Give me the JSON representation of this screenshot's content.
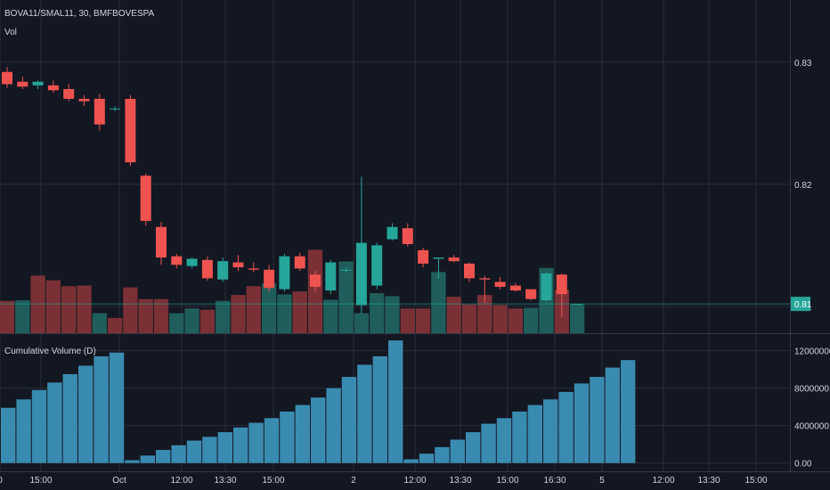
{
  "header": {
    "symbol_title": "BOVA11/SMAL11, 30, BMFBOVESPA",
    "volume_label": "Vol",
    "cumulative_label": "Cumulative Volume (D)"
  },
  "colors": {
    "background": "#131722",
    "up": "#26a69a",
    "down": "#ef5350",
    "vol_up": "#1f5e5a",
    "vol_down": "#7b3035",
    "cum_bar": "#3a8bb0",
    "grid": "#2a2e39"
  },
  "chart_data": [
    {
      "type": "candlestick",
      "title": "BOVA11/SMAL11, 30, BMFBOVESPA",
      "ylim": [
        0.8078,
        0.834
      ],
      "y_ticks": [
        "0.83",
        "0.82",
        "0.81"
      ],
      "y_tick_values": [
        0.83,
        0.82,
        0.81
      ],
      "last_price_label": "0.81",
      "last_price": 0.8102,
      "x_tick_labels": [
        "0",
        "15:00",
        "Oct",
        "12:00",
        "13:30",
        "15:00",
        "2",
        "12:00",
        "13:30",
        "15:00",
        "16:30",
        "5",
        "12:00",
        "13:30",
        "15:00"
      ],
      "candles": [
        {
          "o": 0.8292,
          "h": 0.8296,
          "l": 0.8279,
          "c": 0.8282
        },
        {
          "o": 0.8284,
          "h": 0.8288,
          "l": 0.8278,
          "c": 0.828
        },
        {
          "o": 0.8281,
          "h": 0.8285,
          "l": 0.8278,
          "c": 0.8284
        },
        {
          "o": 0.8281,
          "h": 0.8285,
          "l": 0.8275,
          "c": 0.8277
        },
        {
          "o": 0.8278,
          "h": 0.8282,
          "l": 0.8268,
          "c": 0.827
        },
        {
          "o": 0.827,
          "h": 0.8273,
          "l": 0.8264,
          "c": 0.8268
        },
        {
          "o": 0.827,
          "h": 0.8274,
          "l": 0.8244,
          "c": 0.8249
        },
        {
          "o": 0.8262,
          "h": 0.8264,
          "l": 0.826,
          "c": 0.8262
        },
        {
          "o": 0.827,
          "h": 0.8273,
          "l": 0.8215,
          "c": 0.8218
        },
        {
          "o": 0.8207,
          "h": 0.8209,
          "l": 0.8166,
          "c": 0.817
        },
        {
          "o": 0.8165,
          "h": 0.8169,
          "l": 0.8134,
          "c": 0.814
        },
        {
          "o": 0.8141,
          "h": 0.8143,
          "l": 0.8131,
          "c": 0.8134
        },
        {
          "o": 0.8133,
          "h": 0.814,
          "l": 0.8131,
          "c": 0.8139
        },
        {
          "o": 0.8138,
          "h": 0.8141,
          "l": 0.8121,
          "c": 0.8123
        },
        {
          "o": 0.8122,
          "h": 0.814,
          "l": 0.812,
          "c": 0.8137
        },
        {
          "o": 0.8136,
          "h": 0.8142,
          "l": 0.8129,
          "c": 0.8132
        },
        {
          "o": 0.8131,
          "h": 0.8136,
          "l": 0.8128,
          "c": 0.813
        },
        {
          "o": 0.813,
          "h": 0.8134,
          "l": 0.8112,
          "c": 0.8115
        },
        {
          "o": 0.8114,
          "h": 0.8143,
          "l": 0.8112,
          "c": 0.8141
        },
        {
          "o": 0.8141,
          "h": 0.8144,
          "l": 0.8129,
          "c": 0.8131
        },
        {
          "o": 0.8126,
          "h": 0.8129,
          "l": 0.8112,
          "c": 0.8116
        },
        {
          "o": 0.8113,
          "h": 0.8138,
          "l": 0.811,
          "c": 0.8136
        },
        {
          "o": 0.813,
          "h": 0.8132,
          "l": 0.8128,
          "c": 0.813
        },
        {
          "o": 0.8101,
          "h": 0.8206,
          "l": 0.8094,
          "c": 0.8152
        },
        {
          "o": 0.8117,
          "h": 0.8152,
          "l": 0.8114,
          "c": 0.815
        },
        {
          "o": 0.8155,
          "h": 0.8168,
          "l": 0.8154,
          "c": 0.8165
        },
        {
          "o": 0.8164,
          "h": 0.8168,
          "l": 0.8149,
          "c": 0.8151
        },
        {
          "o": 0.8146,
          "h": 0.8148,
          "l": 0.8132,
          "c": 0.8135
        },
        {
          "o": 0.8139,
          "h": 0.814,
          "l": 0.8123,
          "c": 0.814
        },
        {
          "o": 0.814,
          "h": 0.8142,
          "l": 0.8136,
          "c": 0.8137
        },
        {
          "o": 0.8135,
          "h": 0.8136,
          "l": 0.812,
          "c": 0.8123
        },
        {
          "o": 0.8123,
          "h": 0.8125,
          "l": 0.8103,
          "c": 0.8122
        },
        {
          "o": 0.812,
          "h": 0.8124,
          "l": 0.8114,
          "c": 0.8116
        },
        {
          "o": 0.8117,
          "h": 0.8119,
          "l": 0.8112,
          "c": 0.8113
        },
        {
          "o": 0.8114,
          "h": 0.8114,
          "l": 0.8105,
          "c": 0.8106
        },
        {
          "o": 0.8105,
          "h": 0.8128,
          "l": 0.8104,
          "c": 0.8127
        },
        {
          "o": 0.8126,
          "h": 0.8127,
          "l": 0.8091,
          "c": 0.811
        },
        {
          "o": 0.8102,
          "h": 0.8102,
          "l": 0.8102,
          "c": 0.8102
        }
      ],
      "volume": [
        {
          "v": 0.55,
          "up": false
        },
        {
          "v": 0.56,
          "up": true
        },
        {
          "v": 0.98,
          "up": false
        },
        {
          "v": 0.9,
          "up": false
        },
        {
          "v": 0.8,
          "up": false
        },
        {
          "v": 0.81,
          "up": false
        },
        {
          "v": 0.34,
          "up": true
        },
        {
          "v": 0.26,
          "up": false
        },
        {
          "v": 0.78,
          "up": false
        },
        {
          "v": 0.58,
          "up": false
        },
        {
          "v": 0.58,
          "up": false
        },
        {
          "v": 0.34,
          "up": true
        },
        {
          "v": 0.42,
          "up": true
        },
        {
          "v": 0.4,
          "up": false
        },
        {
          "v": 0.55,
          "up": true
        },
        {
          "v": 0.65,
          "up": false
        },
        {
          "v": 0.8,
          "up": false
        },
        {
          "v": 0.85,
          "up": true
        },
        {
          "v": 0.66,
          "up": true
        },
        {
          "v": 0.71,
          "up": false
        },
        {
          "v": 1.42,
          "up": false
        },
        {
          "v": 0.57,
          "up": true
        },
        {
          "v": 1.22,
          "up": true
        },
        {
          "v": 0.34,
          "up": true
        },
        {
          "v": 0.68,
          "up": true
        },
        {
          "v": 0.63,
          "up": true
        },
        {
          "v": 0.42,
          "up": false
        },
        {
          "v": 0.42,
          "up": false
        },
        {
          "v": 1.04,
          "up": true
        },
        {
          "v": 0.62,
          "up": false
        },
        {
          "v": 0.49,
          "up": false
        },
        {
          "v": 0.65,
          "up": false
        },
        {
          "v": 0.48,
          "up": false
        },
        {
          "v": 0.42,
          "up": false
        },
        {
          "v": 0.43,
          "up": true
        },
        {
          "v": 1.11,
          "up": true
        },
        {
          "v": 0.74,
          "up": false
        },
        {
          "v": 0.49,
          "up": true
        }
      ]
    },
    {
      "type": "bar",
      "title": "Cumulative Volume (D)",
      "ylim": [
        -500000,
        13300000
      ],
      "y_ticks": [
        "12000000.00",
        "8000000.00",
        "4000000.00",
        "0.00"
      ],
      "y_tick_values": [
        12000000,
        8000000,
        4000000,
        0
      ],
      "values": [
        5900000,
        6800000,
        7800000,
        8600000,
        9500000,
        10400000,
        11400000,
        11800000,
        300000,
        800000,
        1400000,
        1900000,
        2400000,
        2800000,
        3300000,
        3800000,
        4300000,
        4800000,
        5500000,
        6200000,
        7000000,
        8000000,
        9200000,
        10500000,
        11400000,
        13100000,
        400000,
        1000000,
        1700000,
        2500000,
        3300000,
        4200000,
        4800000,
        5500000,
        6200000,
        6800000,
        7600000,
        8500000,
        9200000,
        10200000,
        11000000
      ]
    }
  ]
}
